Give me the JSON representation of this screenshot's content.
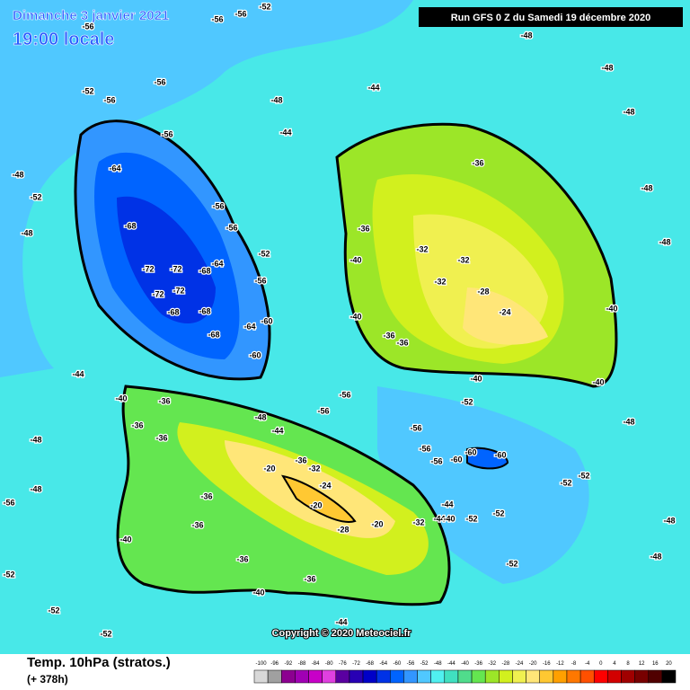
{
  "header": {
    "date": "Dimanche 3 janvier 2021",
    "time": "19:00 locale",
    "run": "Run GFS 0 Z du Samedi 19 décembre 2020"
  },
  "footer": {
    "variable": "Temp. 10hPa (stratos.)",
    "lead": "(+ 378h)",
    "copyright": "Copyright © 2020 Meteociel.fr"
  },
  "legend": {
    "ticks": [
      -100,
      -96,
      -92,
      -88,
      -84,
      -80,
      -76,
      -72,
      -68,
      -64,
      -60,
      -56,
      -52,
      -48,
      -44,
      -40,
      -36,
      -32,
      -28,
      -24,
      -20,
      -16,
      -12,
      -8,
      -4,
      0,
      4,
      8,
      12,
      16,
      20
    ],
    "colors": [
      "#d8d8d8",
      "#a0a0a0",
      "#8c0090",
      "#a000b4",
      "#c800c8",
      "#e040e0",
      "#5a00a0",
      "#2800b4",
      "#0000c8",
      "#0032e6",
      "#0064ff",
      "#3296ff",
      "#50c8ff",
      "#50f0f0",
      "#40e0c0",
      "#50dc8c",
      "#64e650",
      "#9ce628",
      "#d2f01e",
      "#f0f050",
      "#ffe678",
      "#ffc832",
      "#ffa000",
      "#ff7800",
      "#ff5000",
      "#ff0000",
      "#d20000",
      "#a00000",
      "#780000",
      "#500000",
      "#000000"
    ]
  },
  "labels": [
    -64,
    -68,
    -72,
    -72,
    -72,
    -72,
    -68,
    -64,
    -68,
    -68,
    -68,
    -64,
    -60,
    -60,
    -56,
    -56,
    -56,
    -52,
    -56,
    -56,
    -56,
    -52,
    -48,
    -44,
    -44,
    -36,
    -36,
    -32,
    -32,
    -32,
    -28,
    -24,
    -40,
    -40,
    -36,
    -36,
    -40,
    -40,
    -40,
    -20,
    -32,
    -24,
    -20,
    -20,
    -28,
    -36,
    -36,
    -36,
    -36,
    -40,
    -40,
    -36,
    -36,
    -36,
    -40,
    -44,
    -36,
    -44,
    -60,
    -60,
    -60,
    -56,
    -56,
    -56,
    -56,
    -56,
    -48,
    -44,
    -52,
    -52,
    -52,
    -52,
    -52,
    -44,
    -32,
    -40,
    -52,
    -44,
    -48,
    -48,
    -52,
    -52,
    -52,
    -48,
    -48,
    -48,
    -48,
    -48,
    -48,
    -48,
    -48,
    -48,
    -52,
    -48,
    -56,
    -56,
    -56,
    -56,
    -52
  ]
}
